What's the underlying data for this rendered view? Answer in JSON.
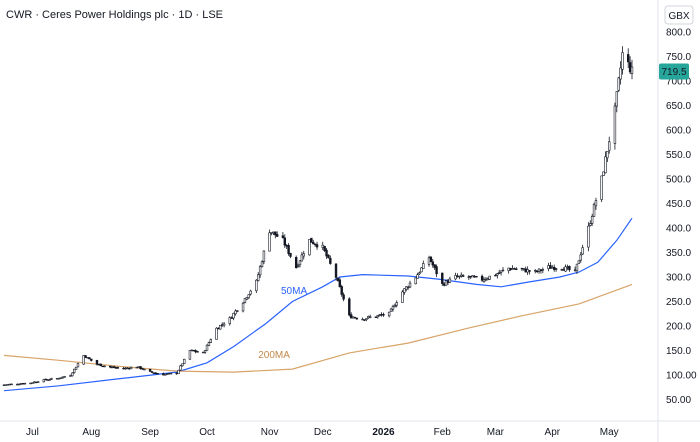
{
  "header": {
    "title": "CWR · Ceres Power Holdings plc · 1D · LSE",
    "currency": "GBX"
  },
  "colors": {
    "up": "#26a69a",
    "down": "#ef5350",
    "candle": "#131722",
    "ma50": "#2962ff",
    "ma200": "#d8a468",
    "price_badge": "#26a69a",
    "grid": "#e0e3eb"
  },
  "chart_data": {
    "type": "candlestick",
    "title": "CWR · Ceres Power Holdings plc · 1D · LSE",
    "ylabel": "GBX",
    "ylim": [
      30,
      820
    ],
    "y_ticks": [
      50,
      100,
      150,
      200,
      250,
      300,
      350,
      400,
      450,
      500,
      550,
      600,
      650,
      700,
      750,
      800
    ],
    "y_tick_labels": [
      "50.00",
      "100.00",
      "150.0",
      "200.0",
      "250.0",
      "300.0",
      "350.0",
      "400.0",
      "450.0",
      "500.0",
      "550.0",
      "600.0",
      "650.0",
      "700.0",
      "750.0",
      "800.0"
    ],
    "x_ticks": [
      {
        "label": "Jul",
        "date": "2025-07-01",
        "bold": false
      },
      {
        "label": "Aug",
        "date": "2025-08-01",
        "bold": false
      },
      {
        "label": "Sep",
        "date": "2025-09-01",
        "bold": false
      },
      {
        "label": "Oct",
        "date": "2025-10-01",
        "bold": false
      },
      {
        "label": "Nov",
        "date": "2025-11-03",
        "bold": false
      },
      {
        "label": "Dec",
        "date": "2025-12-01",
        "bold": false
      },
      {
        "label": "2026",
        "date": "2026-01-02",
        "bold": true
      },
      {
        "label": "Feb",
        "date": "2026-02-02",
        "bold": false
      },
      {
        "label": "Mar",
        "date": "2026-03-02",
        "bold": false
      },
      {
        "label": "Apr",
        "date": "2026-04-01",
        "bold": false
      },
      {
        "label": "May",
        "date": "2026-05-01",
        "bold": false
      }
    ],
    "last_price": 719.5,
    "last_price_label": "719.5",
    "grid": false,
    "price_series": [
      {
        "date": "2025-06-16",
        "close": 80
      },
      {
        "date": "2025-06-23",
        "close": 82
      },
      {
        "date": "2025-06-30",
        "close": 84
      },
      {
        "date": "2025-07-07",
        "close": 90
      },
      {
        "date": "2025-07-14",
        "close": 93
      },
      {
        "date": "2025-07-21",
        "close": 100
      },
      {
        "date": "2025-07-28",
        "close": 140
      },
      {
        "date": "2025-08-04",
        "close": 122
      },
      {
        "date": "2025-08-11",
        "close": 116
      },
      {
        "date": "2025-08-18",
        "close": 113
      },
      {
        "date": "2025-08-25",
        "close": 117
      },
      {
        "date": "2025-09-01",
        "close": 106
      },
      {
        "date": "2025-09-08",
        "close": 101
      },
      {
        "date": "2025-09-15",
        "close": 104
      },
      {
        "date": "2025-09-22",
        "close": 150
      },
      {
        "date": "2025-09-29",
        "close": 145
      },
      {
        "date": "2025-10-06",
        "close": 195
      },
      {
        "date": "2025-10-13",
        "close": 215
      },
      {
        "date": "2025-10-20",
        "close": 250
      },
      {
        "date": "2025-10-27",
        "close": 290
      },
      {
        "date": "2025-11-03",
        "close": 395
      },
      {
        "date": "2025-11-10",
        "close": 375
      },
      {
        "date": "2025-11-17",
        "close": 320
      },
      {
        "date": "2025-11-24",
        "close": 375
      },
      {
        "date": "2025-12-01",
        "close": 360
      },
      {
        "date": "2025-12-08",
        "close": 300
      },
      {
        "date": "2025-12-15",
        "close": 220
      },
      {
        "date": "2025-12-22",
        "close": 215
      },
      {
        "date": "2026-01-05",
        "close": 225
      },
      {
        "date": "2026-01-12",
        "close": 270
      },
      {
        "date": "2026-01-19",
        "close": 300
      },
      {
        "date": "2026-01-26",
        "close": 340
      },
      {
        "date": "2026-02-02",
        "close": 285
      },
      {
        "date": "2026-02-09",
        "close": 300
      },
      {
        "date": "2026-02-16",
        "close": 300
      },
      {
        "date": "2026-02-23",
        "close": 295
      },
      {
        "date": "2026-03-02",
        "close": 305
      },
      {
        "date": "2026-03-09",
        "close": 318
      },
      {
        "date": "2026-03-16",
        "close": 315
      },
      {
        "date": "2026-03-23",
        "close": 310
      },
      {
        "date": "2026-03-30",
        "close": 320
      },
      {
        "date": "2026-04-06",
        "close": 320
      },
      {
        "date": "2026-04-13",
        "close": 310
      },
      {
        "date": "2026-04-20",
        "close": 400
      },
      {
        "date": "2026-04-27",
        "close": 500
      },
      {
        "date": "2026-05-04",
        "close": 640
      },
      {
        "date": "2026-05-08",
        "close": 755
      },
      {
        "date": "2026-05-13",
        "close": 719.5
      }
    ],
    "series": [
      {
        "name": "50MA",
        "values": [
          {
            "date": "2025-06-16",
            "value": 68
          },
          {
            "date": "2025-07-15",
            "value": 78
          },
          {
            "date": "2025-08-15",
            "value": 92
          },
          {
            "date": "2025-09-15",
            "value": 106
          },
          {
            "date": "2025-10-01",
            "value": 125
          },
          {
            "date": "2025-10-15",
            "value": 158
          },
          {
            "date": "2025-11-01",
            "value": 205
          },
          {
            "date": "2025-11-15",
            "value": 250
          },
          {
            "date": "2025-12-01",
            "value": 280
          },
          {
            "date": "2025-12-10",
            "value": 300
          },
          {
            "date": "2025-12-22",
            "value": 305
          },
          {
            "date": "2026-01-15",
            "value": 302
          },
          {
            "date": "2026-02-01",
            "value": 295
          },
          {
            "date": "2026-02-20",
            "value": 285
          },
          {
            "date": "2026-03-05",
            "value": 280
          },
          {
            "date": "2026-03-20",
            "value": 290
          },
          {
            "date": "2026-04-05",
            "value": 300
          },
          {
            "date": "2026-04-15",
            "value": 310
          },
          {
            "date": "2026-04-25",
            "value": 330
          },
          {
            "date": "2026-05-05",
            "value": 375
          },
          {
            "date": "2026-05-13",
            "value": 420
          }
        ]
      },
      {
        "name": "200MA",
        "values": [
          {
            "date": "2025-06-16",
            "value": 140
          },
          {
            "date": "2025-07-15",
            "value": 130
          },
          {
            "date": "2025-08-15",
            "value": 118
          },
          {
            "date": "2025-09-15",
            "value": 108
          },
          {
            "date": "2025-10-15",
            "value": 106
          },
          {
            "date": "2025-11-15",
            "value": 112
          },
          {
            "date": "2025-12-15",
            "value": 145
          },
          {
            "date": "2026-01-15",
            "value": 165
          },
          {
            "date": "2026-02-15",
            "value": 195
          },
          {
            "date": "2026-03-15",
            "value": 220
          },
          {
            "date": "2026-04-15",
            "value": 245
          },
          {
            "date": "2026-05-13",
            "value": 285
          }
        ]
      }
    ],
    "annotations": [
      "50MA",
      "200MA"
    ]
  }
}
